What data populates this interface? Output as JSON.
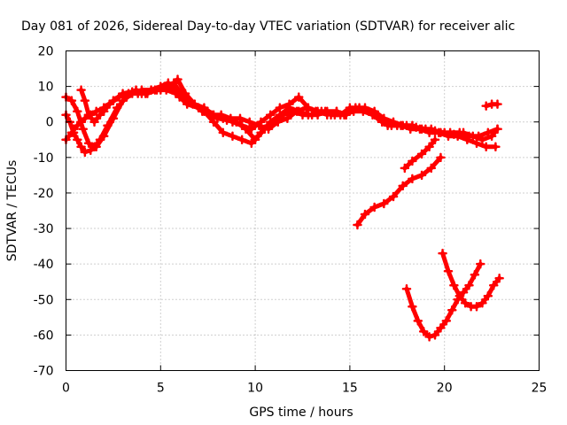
{
  "chart_data": {
    "type": "line",
    "title": "Day 081 of 2026, Sidereal Day-to-day VTEC variation (SDTVAR) for receiver alic",
    "xlabel": "GPS time / hours",
    "ylabel": "SDTVAR / TECUs",
    "xlim": [
      0,
      25
    ],
    "ylim": [
      -70,
      20
    ],
    "xticks": [
      0,
      5,
      10,
      15,
      20,
      25
    ],
    "yticks": [
      20,
      10,
      0,
      -10,
      -20,
      -30,
      -40,
      -50,
      -60,
      -70
    ],
    "grid": true,
    "legend": "none",
    "color": "#ff0000",
    "series": [
      {
        "x": [
          0.0,
          0.3,
          0.6,
          0.8,
          1.0,
          1.3,
          1.6,
          2.0,
          2.5,
          3.0,
          3.5,
          4.0,
          4.5,
          5.0,
          5.4,
          5.7,
          6.0,
          6.4,
          7.0,
          7.6,
          8.0,
          8.5,
          9.0,
          9.5,
          10.0,
          10.5,
          11.0,
          11.5,
          12.0,
          12.5,
          13.0,
          13.5,
          14.0,
          14.5,
          15.0,
          15.5,
          16.0,
          16.5,
          17.0,
          17.5,
          18.0,
          18.5,
          19.0,
          19.5,
          20.0,
          20.5,
          21.0,
          21.5,
          22.0,
          22.5,
          22.8
        ],
        "y": [
          -5,
          -3,
          -1,
          0,
          1,
          2,
          3,
          4,
          6,
          8,
          8.5,
          8,
          9,
          10,
          11,
          9,
          7,
          5,
          4,
          2,
          1,
          0.5,
          0,
          -2,
          -5,
          -2,
          0,
          2,
          3,
          2,
          2,
          3,
          2,
          2,
          4,
          4,
          3,
          1,
          -1,
          -1,
          -1,
          -1.5,
          -2,
          -2.5,
          -3,
          -3.5,
          -3,
          -4,
          -5,
          -4,
          -2
        ]
      },
      {
        "x": [
          0.0,
          0.2,
          0.4,
          0.6,
          0.8,
          1.0,
          1.3,
          1.6,
          2.0,
          2.5,
          3.0,
          3.5,
          4.0,
          4.5,
          5.0,
          5.5,
          5.9,
          6.3,
          6.8,
          7.3,
          7.8,
          8.3,
          8.8,
          9.3,
          9.8,
          10.3,
          10.8,
          11.3,
          11.8,
          12.3,
          12.8,
          13.3,
          13.8,
          14.3,
          14.8
        ],
        "y": [
          2,
          0,
          -3,
          -5,
          -7,
          -8.5,
          -8,
          -7,
          -4,
          1,
          6,
          8,
          9,
          9,
          9,
          10,
          12,
          8,
          5,
          3,
          0,
          -3,
          -4,
          -5,
          -6,
          -3,
          0,
          2,
          4,
          3,
          2,
          2,
          3,
          3,
          2
        ]
      },
      {
        "x": [
          0.0,
          0.3,
          0.6,
          0.9,
          1.2,
          1.5,
          1.8,
          2.2,
          2.7,
          3.2,
          3.7,
          4.2,
          4.7,
          5.2,
          5.7,
          6.2,
          6.7,
          7.2,
          7.7,
          8.2,
          8.7,
          9.2,
          9.7,
          10.2,
          10.7,
          11.2,
          11.7,
          12.2,
          12.7,
          13.2,
          13.7,
          14.2,
          14.7,
          15.2,
          15.7,
          16.2,
          16.7,
          17.2,
          17.7,
          18.2,
          18.7,
          19.2,
          19.7,
          20.2,
          20.7,
          21.2,
          21.7,
          22.2,
          22.7
        ],
        "y": [
          7,
          6,
          3,
          -2,
          -6,
          -7,
          -5,
          -1,
          4,
          7,
          9,
          8,
          9,
          10,
          11,
          7,
          5,
          3,
          2,
          2,
          1,
          1,
          0,
          -1,
          -2,
          0,
          1,
          3,
          4,
          3,
          3,
          2,
          2,
          3,
          3,
          2,
          0,
          -1,
          -1,
          -2,
          -2,
          -3,
          -3,
          -4,
          -4,
          -5,
          -6,
          -7,
          -7
        ]
      },
      {
        "x": [
          0.8,
          1.0,
          1.2,
          1.5,
          1.8,
          2.0,
          2.3,
          2.8,
          3.3,
          3.8,
          4.3,
          4.8,
          5.3,
          5.8,
          6.3,
          6.8,
          7.3,
          7.8,
          8.3,
          8.8,
          9.3,
          9.8,
          10.3,
          10.8,
          11.3,
          11.8,
          12.3,
          12.8,
          13.3,
          13.8,
          14.3,
          14.8,
          15.3,
          15.8,
          16.3,
          16.8,
          17.3,
          17.8,
          18.3,
          18.8,
          19.3,
          19.8,
          20.3,
          20.8,
          21.3,
          21.8,
          22.3,
          22.8
        ],
        "y": [
          9,
          6,
          2,
          0,
          2,
          3,
          5,
          7,
          8,
          8,
          8,
          9,
          9,
          8,
          7,
          5,
          4,
          2,
          1,
          0,
          -1,
          -2,
          0,
          2,
          4,
          5,
          7,
          4,
          3,
          2,
          3,
          2,
          4,
          4,
          3,
          1,
          0,
          -1,
          -1,
          -2,
          -2,
          -3,
          -3,
          -3,
          -4,
          -4,
          -3,
          -2
        ]
      },
      {
        "x": [
          22.2,
          22.5,
          22.8
        ],
        "y": [
          4.5,
          5,
          5
        ]
      },
      {
        "x": [
          15.4,
          15.8,
          16.3,
          16.8,
          17.3,
          17.8,
          18.3,
          18.8,
          19.3,
          19.8
        ],
        "y": [
          -29,
          -26,
          -24,
          -23,
          -21,
          -18,
          -16,
          -15,
          -13,
          -10
        ]
      },
      {
        "x": [
          17.9,
          18.3,
          18.8,
          19.2,
          19.5
        ],
        "y": [
          -13,
          -11,
          -9,
          -7,
          -5
        ]
      },
      {
        "x": [
          18.0,
          18.3,
          18.6,
          18.9,
          19.2,
          19.5,
          19.8,
          20.1,
          20.4,
          20.7,
          21.0,
          21.3,
          21.6,
          21.9
        ],
        "y": [
          -47,
          -52,
          -56,
          -59,
          -60.5,
          -60,
          -58,
          -56,
          -53,
          -50,
          -48,
          -46,
          -43,
          -40
        ]
      },
      {
        "x": [
          19.9,
          20.2,
          20.5,
          20.8,
          21.1,
          21.4,
          21.7,
          22.0,
          22.3,
          22.6,
          22.9
        ],
        "y": [
          -37,
          -42,
          -46,
          -49,
          -51,
          -52,
          -52,
          -51,
          -49,
          -46,
          -44
        ]
      }
    ]
  }
}
